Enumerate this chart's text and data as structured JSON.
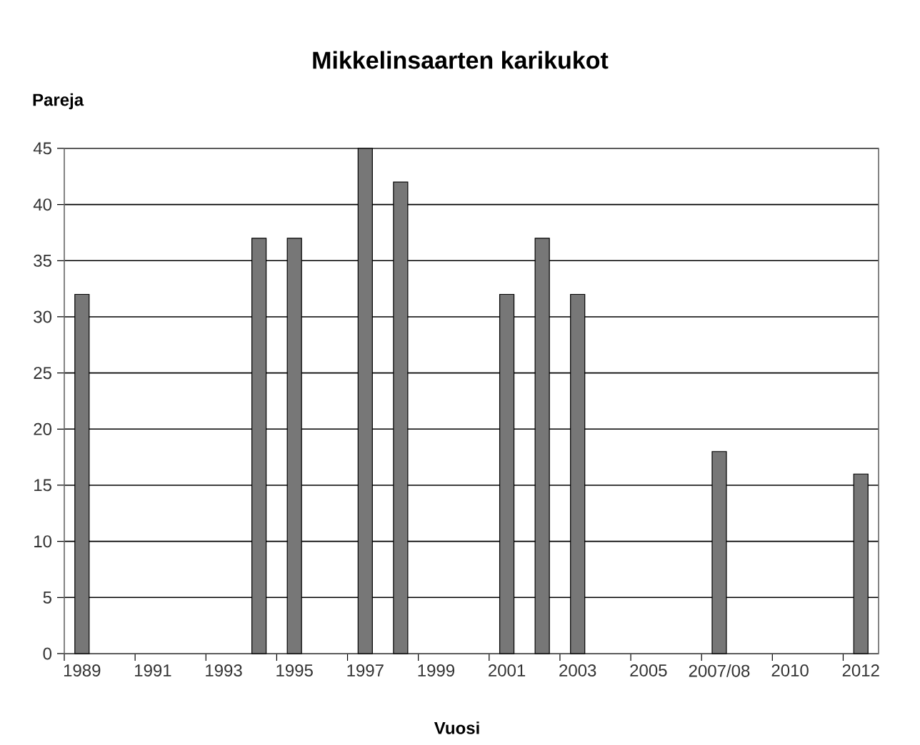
{
  "chart_data": {
    "type": "bar",
    "title": "Mikkelinsaarten karikukot",
    "xlabel": "Vuosi",
    "ylabel": "Pareja",
    "categories": [
      "1989",
      null,
      "1991",
      null,
      "1993",
      null,
      "1995",
      null,
      "1997",
      null,
      "1999",
      null,
      "2001",
      null,
      "2003",
      null,
      "2005",
      null,
      "2007/08",
      null,
      "2010",
      null,
      "2012"
    ],
    "values": [
      32,
      null,
      null,
      null,
      null,
      37,
      37,
      null,
      45,
      42,
      null,
      null,
      32,
      37,
      32,
      null,
      null,
      null,
      18,
      null,
      null,
      null,
      16
    ],
    "color": "#777777",
    "ylim": [
      0,
      45
    ],
    "yticks": [
      0,
      5,
      10,
      15,
      20,
      25,
      30,
      35,
      40,
      45
    ],
    "grid": "y"
  }
}
